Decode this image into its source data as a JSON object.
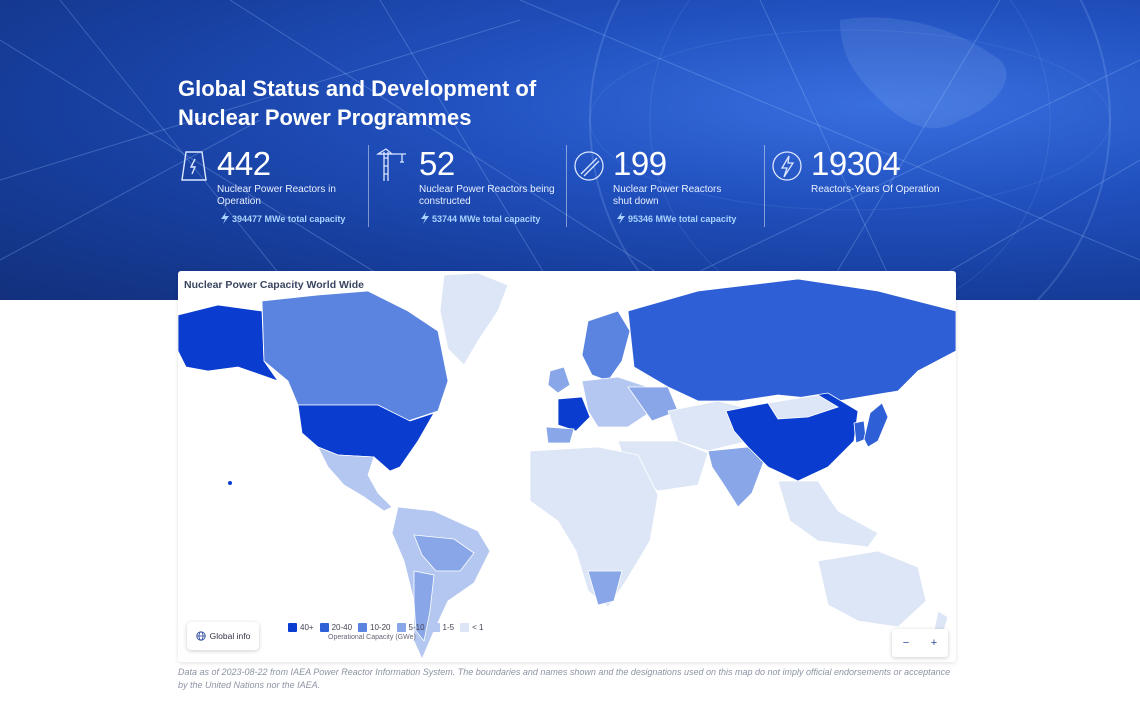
{
  "hero": {
    "title": "Global Status and Development of Nuclear Power Programmes",
    "stats": [
      {
        "value": "442",
        "label": "Nuclear Power Reactors in Operation",
        "capacity": "394477 MWe total capacity",
        "icon": "power-plant-icon"
      },
      {
        "value": "52",
        "label": "Nuclear Power Reactors being constructed",
        "capacity": "53744 MWe total capacity",
        "icon": "crane-icon"
      },
      {
        "value": "199",
        "label": "Nuclear Power Reactors shut down",
        "capacity": "95346 MWe total capacity",
        "icon": "shutdown-icon"
      },
      {
        "value": "19304",
        "label": "Reactors-Years Of Operation",
        "capacity": "",
        "icon": "lightning-circle-icon"
      }
    ]
  },
  "map": {
    "title": "Nuclear Power Capacity World Wide",
    "global_button": "Global info",
    "legend": {
      "items": [
        {
          "label": "40+",
          "color": "#0a3ccf"
        },
        {
          "label": "20-40",
          "color": "#2e5fd6"
        },
        {
          "label": "10-20",
          "color": "#5b84e0"
        },
        {
          "label": "5-10",
          "color": "#88a6e8"
        },
        {
          "label": "1-5",
          "color": "#b4c7f0"
        },
        {
          "label": "< 1",
          "color": "#dde6f6"
        }
      ],
      "caption": "Operational Capacity (GWe)"
    },
    "zoom_out": "−",
    "zoom_in": "+"
  },
  "footnote": "Data as of 2023-08-22 from IAEA Power Reactor Information System. The boundaries and names shown and the designations used on this map do not imply official endorsements or acceptance by the United Nations nor the IAEA."
}
